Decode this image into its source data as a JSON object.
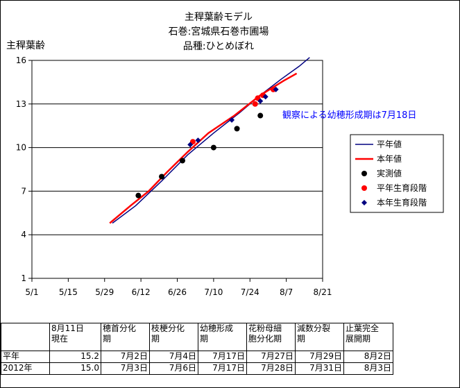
{
  "chart_data": {
    "type": "line",
    "title": [
      "主稈葉齢モデル",
      "石巻:宮城県石巻市圃場",
      "品種:ひとめぼれ"
    ],
    "ylabel": "主稈葉齢",
    "xlabel": "",
    "ylim": [
      1,
      16
    ],
    "yticks": [
      1,
      4,
      7,
      10,
      13,
      16
    ],
    "xlim": [
      "5/1",
      "8/21"
    ],
    "xticks": [
      "5/1",
      "5/15",
      "5/29",
      "6/12",
      "6/26",
      "7/10",
      "7/24",
      "8/7",
      "8/21"
    ],
    "grid": "horizontal",
    "legend_position": "right",
    "annotation": "観察による幼穂形成期は7月18日",
    "series": [
      {
        "name": "平年値",
        "kind": "line",
        "color": "#000080",
        "points": [
          [
            "6/1",
            4.8
          ],
          [
            "6/10",
            6.0
          ],
          [
            "6/20",
            7.7
          ],
          [
            "6/30",
            9.5
          ],
          [
            "7/10",
            11.0
          ],
          [
            "7/20",
            12.4
          ],
          [
            "7/28",
            13.6
          ],
          [
            "8/5",
            14.7
          ],
          [
            "8/12",
            15.6
          ],
          [
            "8/16",
            16.2
          ]
        ]
      },
      {
        "name": "本年値",
        "kind": "line",
        "color": "#ff0000",
        "points": [
          [
            "5/31",
            4.8
          ],
          [
            "6/8",
            6.0
          ],
          [
            "6/15",
            7.0
          ],
          [
            "6/22",
            8.3
          ],
          [
            "6/30",
            9.7
          ],
          [
            "7/8",
            11.0
          ],
          [
            "7/18",
            12.2
          ],
          [
            "7/28",
            13.6
          ],
          [
            "8/6",
            14.6
          ],
          [
            "8/11",
            15.1
          ]
        ]
      },
      {
        "name": "実測値",
        "kind": "scatter",
        "marker": "circle",
        "color": "#000000",
        "points": [
          [
            "6/11",
            6.7
          ],
          [
            "6/20",
            8.0
          ],
          [
            "6/28",
            9.1
          ],
          [
            "7/10",
            10.0
          ],
          [
            "7/19",
            11.3
          ],
          [
            "7/28",
            12.2
          ]
        ]
      },
      {
        "name": "平年生育段階",
        "kind": "scatter",
        "marker": "circle",
        "color": "#ff0000",
        "points": [
          [
            "7/2",
            10.4
          ],
          [
            "7/26",
            13.0
          ],
          [
            "7/27",
            13.4
          ],
          [
            "7/29",
            13.6
          ],
          [
            "8/2",
            14.0
          ]
        ]
      },
      {
        "name": "本年生育段階",
        "kind": "scatter",
        "marker": "diamond",
        "color": "#000080",
        "points": [
          [
            "7/1",
            10.2
          ],
          [
            "7/4",
            10.5
          ],
          [
            "7/17",
            11.9
          ],
          [
            "7/28",
            13.2
          ],
          [
            "7/30",
            13.5
          ],
          [
            "8/3",
            14.0
          ]
        ]
      }
    ]
  },
  "table": {
    "headers": [
      "",
      "8月11日\n現在",
      "穂首分化\n期",
      "枝梗分化\n期",
      "幼穂形成\n期",
      "花粉母細\n胞分化期",
      "減数分裂\n期",
      "止葉完全\n展開期"
    ],
    "rows": [
      [
        "平年",
        "15.2",
        "7月2日",
        "7月4日",
        "7月17日",
        "7月27日",
        "7月29日",
        "8月2日"
      ],
      [
        "2012年",
        "15.0",
        "7月3日",
        "7月6日",
        "7月17日",
        "7月28日",
        "7月31日",
        "8月3日"
      ]
    ]
  }
}
